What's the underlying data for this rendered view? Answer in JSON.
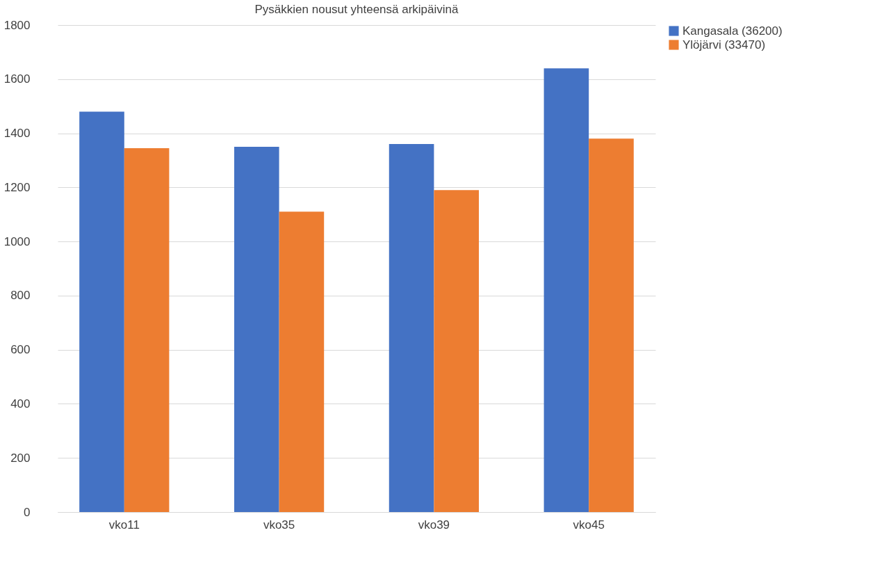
{
  "chart_data": {
    "type": "bar",
    "title": "Pysäkkien nousut yhteensä arkipäivinä",
    "categories": [
      "vko11",
      "vko35",
      "vko39",
      "vko45"
    ],
    "series": [
      {
        "name": "Kangasala (36200)",
        "color": "#4472c4",
        "values": [
          1480,
          1350,
          1360,
          1640
        ]
      },
      {
        "name": "Ylöjärvi (33470)",
        "color": "#ed7d31",
        "values": [
          1345,
          1110,
          1190,
          1380
        ]
      }
    ],
    "ylim": [
      0,
      1800
    ],
    "yticks": [
      0,
      200,
      400,
      600,
      800,
      1000,
      1200,
      1400,
      1600,
      1800
    ],
    "grid": "y",
    "legend": "right"
  }
}
